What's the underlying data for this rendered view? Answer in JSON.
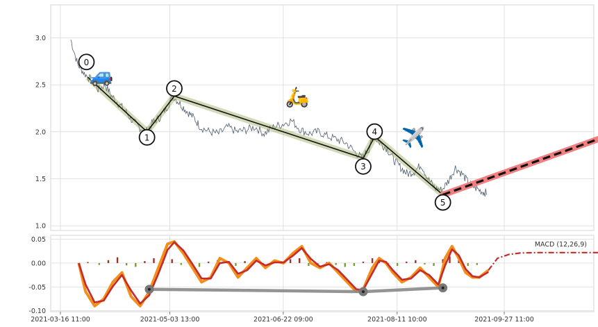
{
  "chart_data": [
    {
      "type": "line",
      "panel": "price",
      "ylim": [
        0.95,
        3.35
      ],
      "y_ticks": [
        "1.0",
        "1.5",
        "2.0",
        "2.5",
        "3.0"
      ],
      "grid": true,
      "price_series": {
        "points": [
          [
            "2021-03-21",
            2.98
          ],
          [
            "2021-03-24",
            2.72
          ],
          [
            "2021-03-27",
            2.62
          ],
          [
            "2021-03-30",
            2.55
          ],
          [
            "2021-04-02",
            2.45
          ],
          [
            "2021-04-05",
            2.5
          ],
          [
            "2021-04-08",
            2.38
          ],
          [
            "2021-04-11",
            2.3
          ],
          [
            "2021-04-14",
            2.22
          ],
          [
            "2021-04-17",
            2.12
          ],
          [
            "2021-04-20",
            2.05
          ],
          [
            "2021-04-23",
            2.0
          ],
          [
            "2021-04-26",
            2.1
          ],
          [
            "2021-04-29",
            2.15
          ],
          [
            "2021-05-02",
            2.25
          ],
          [
            "2021-05-05",
            2.38
          ],
          [
            "2021-05-08",
            2.3
          ],
          [
            "2021-05-11",
            2.22
          ],
          [
            "2021-05-14",
            2.15
          ],
          [
            "2021-05-17",
            2.05
          ],
          [
            "2021-05-21",
            2.0
          ],
          [
            "2021-05-25",
            1.98
          ],
          [
            "2021-05-29",
            2.05
          ],
          [
            "2021-06-02",
            2.0
          ],
          [
            "2021-06-06",
            2.02
          ],
          [
            "2021-06-10",
            2.05
          ],
          [
            "2021-06-14",
            1.98
          ],
          [
            "2021-06-18",
            2.05
          ],
          [
            "2021-06-22",
            2.08
          ],
          [
            "2021-06-26",
            2.12
          ],
          [
            "2021-06-30",
            2.02
          ],
          [
            "2021-07-04",
            1.98
          ],
          [
            "2021-07-08",
            2.0
          ],
          [
            "2021-07-12",
            1.95
          ],
          [
            "2021-07-16",
            1.92
          ],
          [
            "2021-07-20",
            1.88
          ],
          [
            "2021-07-24",
            1.78
          ],
          [
            "2021-07-27",
            1.72
          ],
          [
            "2021-07-30",
            1.82
          ],
          [
            "2021-08-01",
            1.95
          ],
          [
            "2021-08-04",
            1.88
          ],
          [
            "2021-08-07",
            1.82
          ],
          [
            "2021-08-10",
            1.7
          ],
          [
            "2021-08-13",
            1.62
          ],
          [
            "2021-08-16",
            1.55
          ],
          [
            "2021-08-19",
            1.58
          ],
          [
            "2021-08-22",
            1.65
          ],
          [
            "2021-08-25",
            1.5
          ],
          [
            "2021-08-28",
            1.4
          ],
          [
            "2021-08-31",
            1.38
          ],
          [
            "2021-09-03",
            1.48
          ],
          [
            "2021-09-06",
            1.62
          ],
          [
            "2021-09-09",
            1.55
          ],
          [
            "2021-09-12",
            1.45
          ],
          [
            "2021-09-15",
            1.4
          ],
          [
            "2021-09-18",
            1.36
          ],
          [
            "2021-09-20",
            1.35
          ]
        ]
      },
      "zigzag": {
        "points": [
          {
            "label": "0",
            "date": "2021-03-28",
            "value": 2.58
          },
          {
            "label": "1",
            "date": "2021-04-23",
            "value": 2.0
          },
          {
            "label": "2",
            "date": "2021-05-05",
            "value": 2.38
          },
          {
            "label": "3",
            "date": "2021-07-27",
            "value": 1.72
          },
          {
            "label": "4",
            "date": "2021-08-01",
            "value": 1.95
          },
          {
            "label": "5",
            "date": "2021-08-31",
            "value": 1.33
          }
        ]
      },
      "projection": {
        "from": [
          "2021-08-31",
          1.33
        ],
        "to": [
          "2021-11-14",
          1.98
        ],
        "color": "#f08080"
      },
      "icons": [
        {
          "name": "car-icon",
          "glyph": "🚙",
          "date": "2021-04-03",
          "value": 2.53
        },
        {
          "name": "scooter-icon",
          "glyph": "🛵",
          "date": "2021-06-28",
          "value": 2.3
        },
        {
          "name": "airplane-icon",
          "glyph": "✈️",
          "date": "2021-08-18",
          "value": 1.87
        }
      ]
    },
    {
      "type": "line",
      "panel": "macd",
      "legend": "MACD (12,26,9)",
      "legend_placement": "top-right",
      "ylim": [
        -0.102,
        0.058
      ],
      "y_ticks": [
        "0.05",
        "0.00",
        "-0.05",
        "-0.10"
      ],
      "x_ticks": [
        "2021-03-16 11:00",
        "2021-05-03 13:00",
        "2021-06-22 09:00",
        "2021-08-11 10:00",
        "2021-09-27 11:00"
      ],
      "grid": true,
      "macd_line": [
        [
          "2021-03-24",
          0.0
        ],
        [
          "2021-03-27",
          -0.06
        ],
        [
          "2021-03-31",
          -0.09
        ],
        [
          "2021-04-04",
          -0.075
        ],
        [
          "2021-04-08",
          -0.04
        ],
        [
          "2021-04-12",
          -0.02
        ],
        [
          "2021-04-16",
          -0.07
        ],
        [
          "2021-04-20",
          -0.09
        ],
        [
          "2021-04-24",
          -0.06
        ],
        [
          "2021-04-28",
          -0.01
        ],
        [
          "2021-05-02",
          0.04
        ],
        [
          "2021-05-05",
          0.045
        ],
        [
          "2021-05-09",
          0.02
        ],
        [
          "2021-05-13",
          -0.01
        ],
        [
          "2021-05-17",
          -0.04
        ],
        [
          "2021-05-21",
          -0.03
        ],
        [
          "2021-05-25",
          0.01
        ],
        [
          "2021-05-29",
          0.0
        ],
        [
          "2021-06-02",
          -0.03
        ],
        [
          "2021-06-06",
          -0.01
        ],
        [
          "2021-06-10",
          0.01
        ],
        [
          "2021-06-14",
          -0.01
        ],
        [
          "2021-06-18",
          0.005
        ],
        [
          "2021-06-22",
          0.0
        ],
        [
          "2021-06-26",
          0.02
        ],
        [
          "2021-06-30",
          0.035
        ],
        [
          "2021-07-04",
          0.0
        ],
        [
          "2021-07-08",
          -0.01
        ],
        [
          "2021-07-12",
          0.0
        ],
        [
          "2021-07-16",
          -0.02
        ],
        [
          "2021-07-20",
          -0.04
        ],
        [
          "2021-07-24",
          -0.06
        ],
        [
          "2021-07-27",
          -0.055
        ],
        [
          "2021-07-31",
          -0.01
        ],
        [
          "2021-08-03",
          0.01
        ],
        [
          "2021-08-06",
          0.0
        ],
        [
          "2021-08-09",
          -0.02
        ],
        [
          "2021-08-13",
          -0.04
        ],
        [
          "2021-08-17",
          -0.03
        ],
        [
          "2021-08-21",
          -0.01
        ],
        [
          "2021-08-25",
          -0.03
        ],
        [
          "2021-08-29",
          -0.05
        ],
        [
          "2021-09-01",
          0.01
        ],
        [
          "2021-09-04",
          0.035
        ],
        [
          "2021-09-07",
          0.01
        ],
        [
          "2021-09-10",
          -0.02
        ],
        [
          "2021-09-13",
          -0.03
        ],
        [
          "2021-09-16",
          -0.03
        ],
        [
          "2021-09-20",
          -0.015
        ]
      ],
      "signal_forecast": [
        [
          "2021-09-20",
          -0.015
        ],
        [
          "2021-09-24",
          0.01
        ],
        [
          "2021-09-29",
          0.018
        ],
        [
          "2021-10-04",
          0.021
        ],
        [
          "2021-10-12",
          0.022
        ],
        [
          "2021-10-22",
          0.022
        ],
        [
          "2021-11-14",
          0.022
        ]
      ],
      "divergence": [
        [
          "2021-04-24",
          -0.055
        ],
        [
          "2021-07-27",
          -0.06
        ],
        [
          "2021-08-31",
          -0.052
        ]
      ],
      "histogram": [
        [
          "2021-03-28",
          0.002
        ],
        [
          "2021-04-02",
          -0.004
        ],
        [
          "2021-04-06",
          0.006
        ],
        [
          "2021-04-10",
          0.012
        ],
        [
          "2021-04-14",
          -0.005
        ],
        [
          "2021-04-18",
          -0.008
        ],
        [
          "2021-04-22",
          0.004
        ],
        [
          "2021-04-26",
          0.01
        ],
        [
          "2021-04-30",
          0.012
        ],
        [
          "2021-05-04",
          0.008
        ],
        [
          "2021-05-08",
          -0.004
        ],
        [
          "2021-05-12",
          -0.006
        ],
        [
          "2021-05-16",
          -0.008
        ],
        [
          "2021-05-20",
          0.003
        ],
        [
          "2021-05-24",
          0.006
        ],
        [
          "2021-05-28",
          0.002
        ],
        [
          "2021-06-01",
          -0.006
        ],
        [
          "2021-06-05",
          0.004
        ],
        [
          "2021-06-09",
          0.005
        ],
        [
          "2021-06-13",
          -0.004
        ],
        [
          "2021-06-17",
          0.003
        ],
        [
          "2021-06-21",
          0.004
        ],
        [
          "2021-06-25",
          0.008
        ],
        [
          "2021-06-29",
          0.01
        ],
        [
          "2021-07-03",
          -0.006
        ],
        [
          "2021-07-07",
          -0.004
        ],
        [
          "2021-07-11",
          0.002
        ],
        [
          "2021-07-15",
          -0.004
        ],
        [
          "2021-07-19",
          -0.008
        ],
        [
          "2021-07-23",
          -0.006
        ],
        [
          "2021-07-27",
          0.003
        ],
        [
          "2021-07-31",
          0.01
        ],
        [
          "2021-08-03",
          0.008
        ],
        [
          "2021-08-07",
          -0.004
        ],
        [
          "2021-08-11",
          -0.006
        ],
        [
          "2021-08-15",
          0.003
        ],
        [
          "2021-08-19",
          0.006
        ],
        [
          "2021-08-23",
          -0.003
        ],
        [
          "2021-08-27",
          -0.006
        ],
        [
          "2021-08-31",
          0.008
        ],
        [
          "2021-09-03",
          0.014
        ],
        [
          "2021-09-07",
          0.006
        ],
        [
          "2021-09-11",
          -0.006
        ],
        [
          "2021-09-15",
          -0.004
        ]
      ]
    }
  ]
}
